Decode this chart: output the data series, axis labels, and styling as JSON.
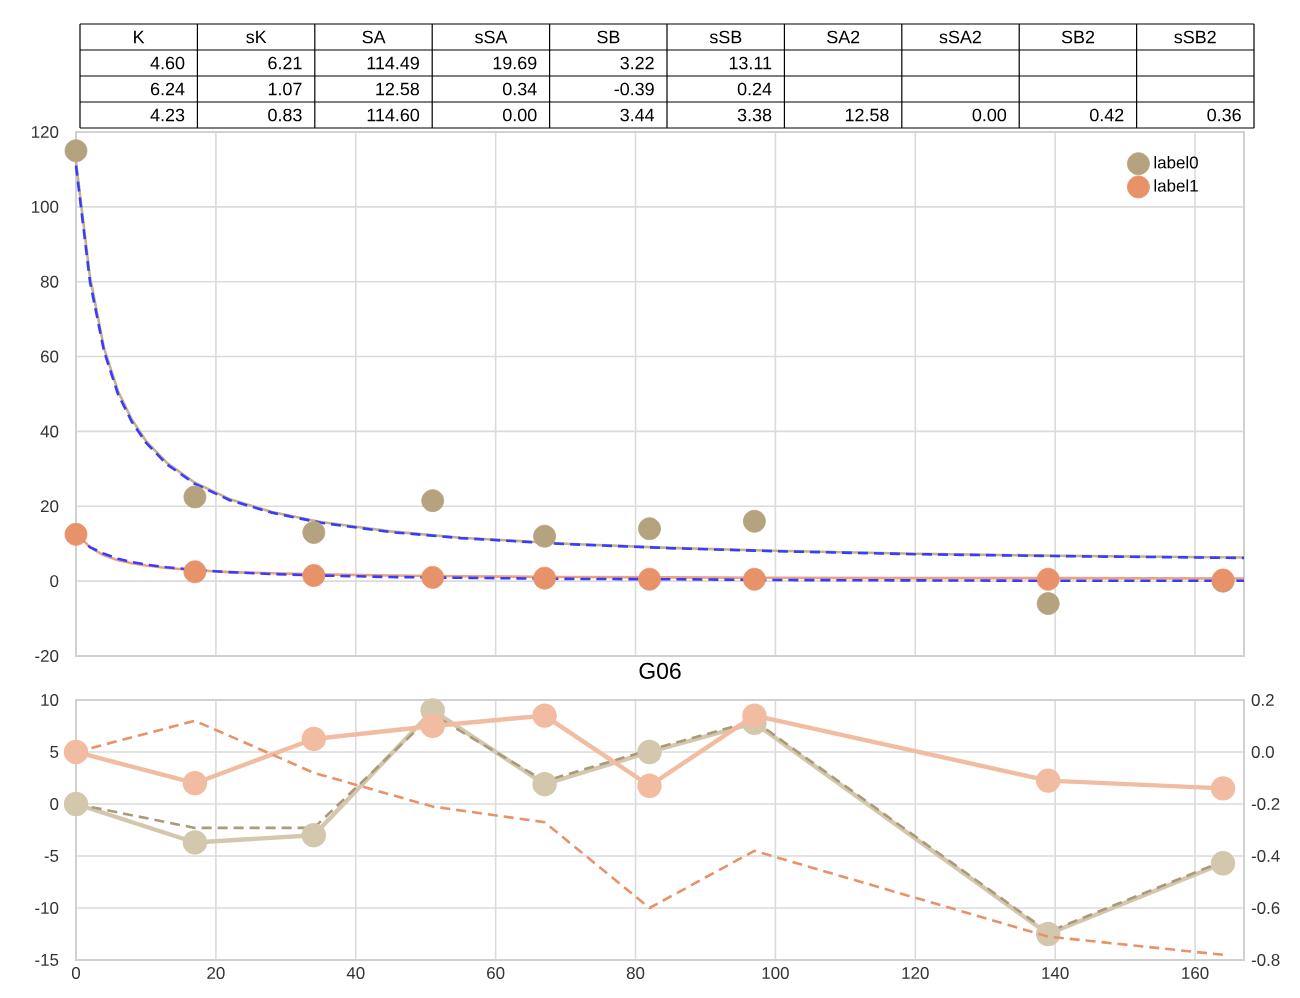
{
  "chart_data": [
    {
      "type": "scatter",
      "x": [
        0,
        17,
        34,
        51,
        67,
        82,
        97,
        139,
        164
      ],
      "xlim": [
        0,
        167
      ],
      "xticks": [
        0,
        20,
        40,
        60,
        80,
        100,
        120,
        140,
        160
      ],
      "ylim": [
        -20,
        120
      ],
      "yticks": [
        -20,
        0,
        20,
        40,
        60,
        80,
        100,
        120
      ],
      "grid": true,
      "legend": "top right",
      "tick_labels": "y",
      "marker": "circle",
      "series": [
        {
          "name": "label0",
          "color": "#b5a27e",
          "values": [
            115,
            22.5,
            13,
            21.5,
            12,
            14,
            16,
            -6,
            0
          ]
        },
        {
          "name": "label1",
          "color": "#e8926a",
          "values": [
            12.5,
            2.5,
            1.5,
            1,
            0.8,
            0.5,
            0.5,
            0.5,
            0.3
          ]
        },
        {
          "type": "line",
          "marker": "none",
          "line_style": "solid",
          "color": "#c2b290",
          "x": [
            0,
            2,
            4,
            6,
            8,
            10,
            13,
            17,
            22,
            28,
            35,
            45,
            55,
            70,
            85,
            100,
            120,
            140,
            167
          ],
          "values": [
            112,
            81.3,
            62.3,
            50.8,
            43.1,
            37.5,
            31.6,
            26.3,
            21.9,
            18.5,
            15.8,
            13.3,
            11.6,
            10,
            8.9,
            8.1,
            7.3,
            6.8,
            6.3
          ]
        },
        {
          "type": "line",
          "marker": "none",
          "line_style": "dashed",
          "color": "#3b3bff",
          "x": [
            0,
            2,
            4,
            6,
            8,
            10,
            13,
            17,
            22,
            28,
            35,
            45,
            55,
            70,
            85,
            100,
            120,
            140,
            167
          ],
          "values": [
            111,
            80,
            61.5,
            50,
            42.5,
            37,
            31.2,
            26,
            21.6,
            18.3,
            15.6,
            13.1,
            11.5,
            9.9,
            8.8,
            8,
            7.2,
            6.7,
            6.2
          ]
        },
        {
          "type": "line",
          "marker": "none",
          "line_style": "solid",
          "color": "#eba27e",
          "x": [
            0,
            2,
            4,
            6,
            8,
            10,
            13,
            17,
            22,
            28,
            35,
            45,
            55,
            70,
            85,
            100,
            120,
            140,
            167
          ],
          "values": [
            13,
            9,
            6.9,
            5.6,
            4.8,
            4.2,
            3.5,
            2.9,
            2.4,
            2.1,
            1.8,
            1.5,
            1.3,
            1.1,
            1,
            0.9,
            0.8,
            0.8,
            0.7
          ]
        },
        {
          "type": "line",
          "marker": "none",
          "line_style": "dashed",
          "color": "#3b3bff",
          "x": [
            0,
            2,
            4,
            6,
            8,
            10,
            13,
            17,
            22,
            28,
            35,
            45,
            55,
            70,
            85,
            100,
            120,
            140,
            167
          ],
          "values": [
            12.2,
            9.1,
            7.3,
            6,
            5.1,
            4.4,
            3.7,
            3,
            2.4,
            1.9,
            1.5,
            1.1,
            0.9,
            0.6,
            0.5,
            0.3,
            0.2,
            0.1,
            0.1
          ]
        }
      ],
      "annotations": [
        "K",
        "sK",
        "SA",
        "sSA",
        "SB",
        "sSB",
        "SA2",
        "sSA2",
        "SB2",
        "sSB2",
        "4.60",
        "6.21",
        "114.49",
        "19.69",
        "3.22",
        "13.11",
        null,
        null,
        null,
        null,
        "6.24",
        "1.07",
        "12.58",
        "0.34",
        "-0.39",
        "0.24",
        null,
        null,
        null,
        null,
        "4.23",
        "0.83",
        "114.60",
        "0.00",
        "3.44",
        "3.38",
        "12.58",
        "0.00",
        "0.42",
        "0.36"
      ]
    },
    {
      "type": "line",
      "title": "G06",
      "x": [
        0,
        17,
        34,
        51,
        67,
        82,
        97,
        139,
        164
      ],
      "xlim": [
        0,
        167
      ],
      "xticks": [
        0,
        20,
        40,
        60,
        80,
        100,
        120,
        140,
        160
      ],
      "ylim": [
        -15,
        10
      ],
      "yticks": [
        -15,
        -10,
        -5,
        0,
        5,
        10
      ],
      "y2lim": [
        -0.8,
        0.2
      ],
      "y2ticks": [
        -0.8,
        -0.6,
        -0.4,
        -0.2,
        {
          "value": 0,
          "label": "0.0"
        },
        0.2
      ],
      "grid": true,
      "series": [
        {
          "color": "#d3c8ae",
          "marker": "circle",
          "line_style": "solid",
          "values": [
            0,
            -3.7,
            -3,
            9,
            1.9,
            5,
            7.8,
            -12.5,
            -5.7
          ]
        },
        {
          "color": "#a99b7a",
          "marker": "none",
          "line_style": "dashed",
          "values": [
            0,
            -2.3,
            -2.3,
            8.6,
            2.2,
            5.2,
            8,
            -12.3,
            -5.5
          ]
        },
        {
          "axis": "y2",
          "color": "#f1bca1",
          "marker": "circle",
          "line_style": "solid",
          "values": [
            0,
            -0.12,
            0.05,
            0.1,
            0.14,
            -0.13,
            0.14,
            -0.11,
            -0.14
          ]
        },
        {
          "axis": "y2",
          "color": "#e8926a",
          "marker": "none",
          "line_style": "dashed",
          "values": [
            0,
            0.12,
            -0.08,
            -0.21,
            -0.27,
            -0.6,
            -0.38,
            -0.71,
            -0.78
          ]
        }
      ]
    }
  ]
}
